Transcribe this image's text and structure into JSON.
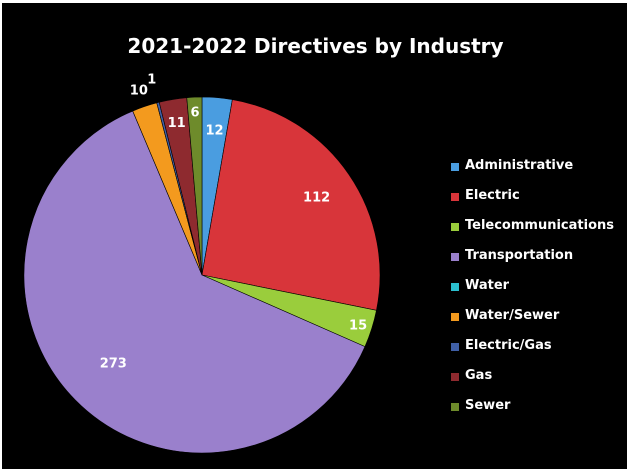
{
  "chart_data": {
    "type": "pie",
    "title": "2021-2022 Directives by Industry",
    "series": [
      {
        "name": "Administrative",
        "value": 12,
        "color": "#4a9de0",
        "label": "12"
      },
      {
        "name": "Electric",
        "value": 112,
        "color": "#d8353a",
        "label": "112"
      },
      {
        "name": "Telecommunications",
        "value": 15,
        "color": "#9acd3c",
        "label": "15"
      },
      {
        "name": "Transportation",
        "value": 273,
        "color": "#9a80cc",
        "label": "273"
      },
      {
        "name": "Water",
        "value": 0,
        "color": "#2bbfcf",
        "label": ""
      },
      {
        "name": "Water/Sewer",
        "value": 10,
        "color": "#f39a1e",
        "label": "10"
      },
      {
        "name": "Electric/Gas",
        "value": 1,
        "color": "#3f5fa6",
        "label": "1"
      },
      {
        "name": "Gas",
        "value": 11,
        "color": "#8e2a2f",
        "label": "11"
      },
      {
        "name": "Sewer",
        "value": 6,
        "color": "#6e8b2b",
        "label": "6"
      }
    ],
    "legend": "right"
  }
}
